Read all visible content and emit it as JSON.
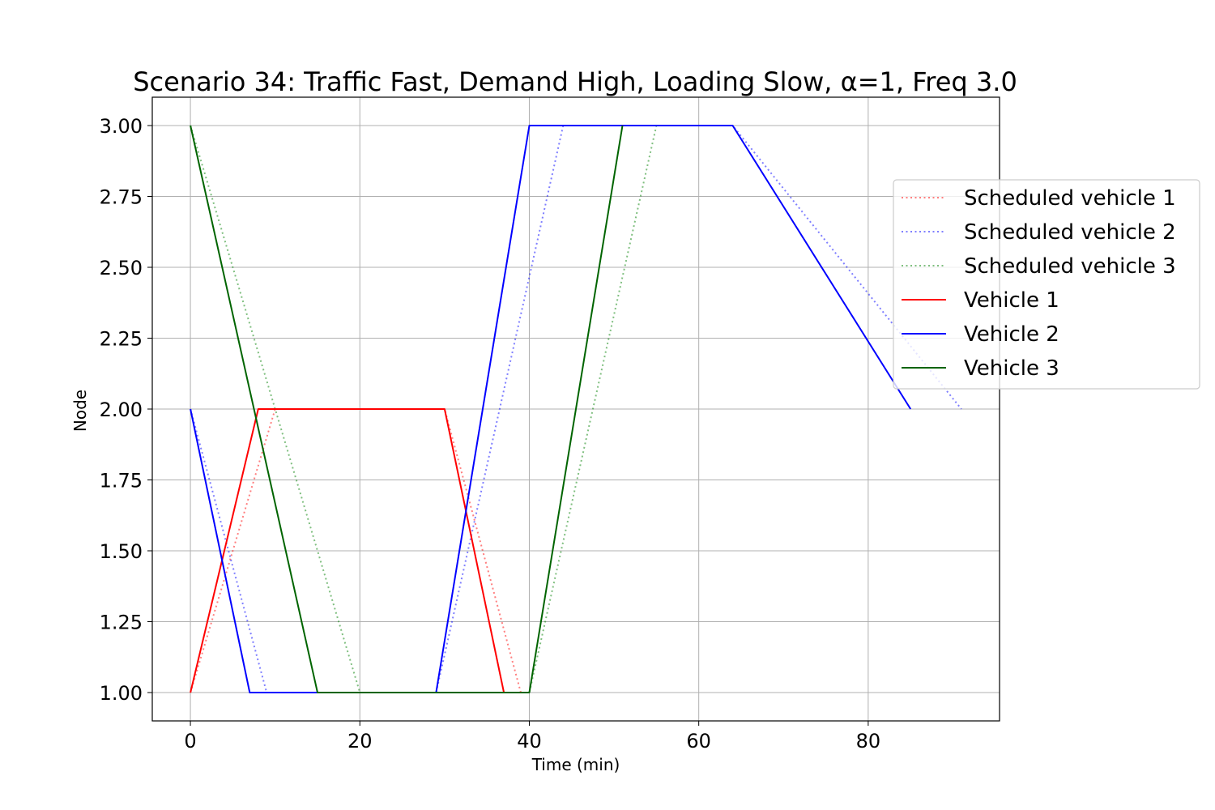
{
  "chart_data": {
    "type": "line",
    "title": "Scenario 34: Traffic Fast, Demand High, Loading Slow, α=1, Freq 3.0",
    "xlabel": "Time (min)",
    "ylabel": "Node",
    "xlim": [
      -4.5,
      95.5
    ],
    "ylim": [
      0.9,
      3.1
    ],
    "xticks": [
      0,
      20,
      40,
      60,
      80
    ],
    "xtick_labels": [
      "0",
      "20",
      "40",
      "60",
      "80"
    ],
    "yticks": [
      1.0,
      1.25,
      1.5,
      1.75,
      2.0,
      2.25,
      2.5,
      2.75,
      3.0
    ],
    "ytick_labels": [
      "1.00",
      "1.25",
      "1.50",
      "1.75",
      "2.00",
      "2.25",
      "2.50",
      "2.75",
      "3.00"
    ],
    "grid": true,
    "legend_position": "right, upper-middle",
    "series": [
      {
        "name": "Scheduled vehicle 1",
        "style": "dotted",
        "color": "#ff0000",
        "opacity": 0.5,
        "points": [
          [
            0,
            1
          ],
          [
            10,
            2
          ],
          [
            30,
            2
          ],
          [
            39,
            1
          ]
        ]
      },
      {
        "name": "Scheduled vehicle 2",
        "style": "dotted",
        "color": "#0000ff",
        "opacity": 0.5,
        "points": [
          [
            0,
            2
          ],
          [
            9,
            1
          ],
          [
            29,
            1
          ],
          [
            44,
            3
          ],
          [
            64,
            3
          ],
          [
            91,
            2
          ]
        ]
      },
      {
        "name": "Scheduled vehicle 3",
        "style": "dotted",
        "color": "#008000",
        "opacity": 0.5,
        "points": [
          [
            0,
            3
          ],
          [
            20,
            1
          ],
          [
            40,
            1
          ],
          [
            55,
            3
          ]
        ]
      },
      {
        "name": "Vehicle 1",
        "style": "solid",
        "color": "#ff0000",
        "opacity": 1,
        "points": [
          [
            0,
            1
          ],
          [
            8,
            2
          ],
          [
            30,
            2
          ],
          [
            37,
            1
          ]
        ]
      },
      {
        "name": "Vehicle 2",
        "style": "solid",
        "color": "#0000ff",
        "opacity": 1,
        "points": [
          [
            0,
            2
          ],
          [
            7,
            1
          ],
          [
            29,
            1
          ],
          [
            40,
            3
          ],
          [
            64,
            3
          ],
          [
            85,
            2
          ]
        ]
      },
      {
        "name": "Vehicle 3",
        "style": "solid",
        "color": "#006400",
        "opacity": 1,
        "points": [
          [
            0,
            3
          ],
          [
            15,
            1
          ],
          [
            40,
            1
          ],
          [
            51,
            3
          ]
        ]
      }
    ]
  }
}
